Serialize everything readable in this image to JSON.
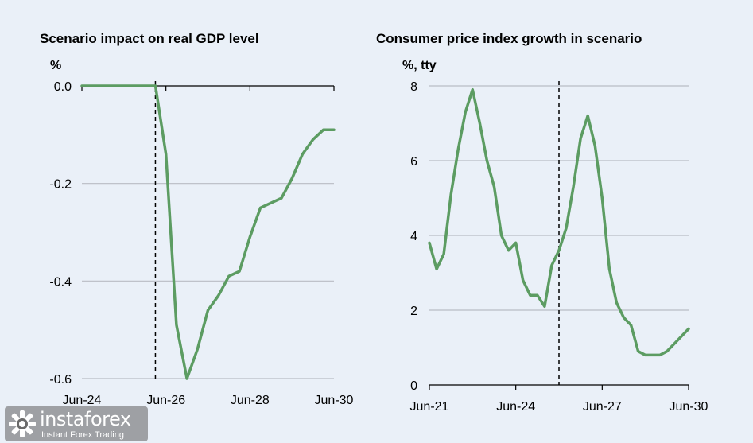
{
  "chart_data": [
    {
      "type": "line",
      "title": "Scenario impact on real GDP level",
      "ylabel": "%",
      "xlabel": "",
      "x_ticks": [
        "Jun-24",
        "Jun-26",
        "Jun-28",
        "Jun-30"
      ],
      "y_ticks": [
        "0.0",
        "-0.2",
        "-0.4",
        "-0.6"
      ],
      "xlim": [
        2024.5,
        2030.5
      ],
      "ylim": [
        -0.6,
        0.0
      ],
      "grid": true,
      "shock_date": 2026.25,
      "series": [
        {
          "color": "#5c9c62",
          "x": [
            2024.5,
            2024.75,
            2025.0,
            2025.25,
            2025.5,
            2025.75,
            2026.0,
            2026.25,
            2026.5,
            2026.75,
            2027.0,
            2027.25,
            2027.5,
            2027.75,
            2028.0,
            2028.25,
            2028.5,
            2028.75,
            2029.0,
            2029.25,
            2029.5,
            2029.75,
            2030.0,
            2030.25,
            2030.5
          ],
          "values": [
            0,
            0,
            0,
            0,
            0,
            0,
            0,
            0,
            -0.14,
            -0.49,
            -0.6,
            -0.54,
            -0.46,
            -0.43,
            -0.39,
            -0.38,
            -0.31,
            -0.25,
            -0.24,
            -0.23,
            -0.19,
            -0.14,
            -0.11,
            -0.09,
            -0.09
          ]
        }
      ]
    },
    {
      "type": "line",
      "title": "Consumer price index growth in scenario",
      "ylabel": "%, tty",
      "xlabel": "",
      "x_ticks": [
        "Jun-21",
        "Jun-24",
        "Jun-27",
        "Jun-30"
      ],
      "y_ticks": [
        "8",
        "6",
        "4",
        "2",
        "0"
      ],
      "xlim": [
        2021.5,
        2030.5
      ],
      "ylim": [
        0,
        8
      ],
      "grid": true,
      "shock_date": 2026.0,
      "series": [
        {
          "color": "#5c9c62",
          "x": [
            2021.5,
            2021.75,
            2022.0,
            2022.25,
            2022.5,
            2022.75,
            2023.0,
            2023.25,
            2023.5,
            2023.75,
            2024.0,
            2024.25,
            2024.5,
            2024.75,
            2025.0,
            2025.25,
            2025.5,
            2025.75,
            2026.0,
            2026.25,
            2026.5,
            2026.75,
            2027.0,
            2027.25,
            2027.5,
            2027.75,
            2028.0,
            2028.25,
            2028.5,
            2028.75,
            2029.0,
            2029.25,
            2029.5,
            2029.75,
            2030.0,
            2030.25,
            2030.5
          ],
          "values": [
            3.8,
            3.1,
            3.5,
            5.1,
            6.3,
            7.3,
            7.9,
            7.0,
            6.0,
            5.3,
            4.0,
            3.6,
            3.8,
            2.8,
            2.4,
            2.4,
            2.1,
            3.2,
            3.6,
            4.2,
            5.3,
            6.6,
            7.2,
            6.4,
            5.0,
            3.1,
            2.2,
            1.8,
            1.6,
            0.9,
            0.8,
            0.8,
            0.8,
            0.9,
            1.1,
            1.3,
            1.5
          ]
        }
      ]
    }
  ],
  "watermark": {
    "brand": "instaforex",
    "tagline": "Instant Forex Trading"
  }
}
